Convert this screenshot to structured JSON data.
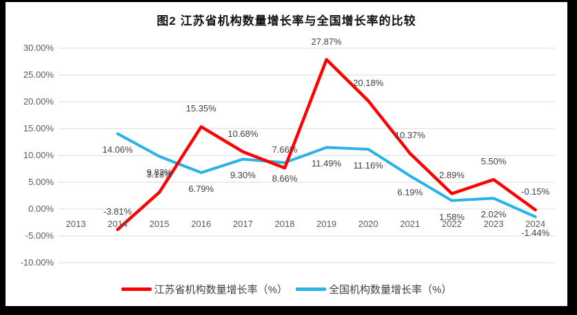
{
  "chart_data": {
    "type": "line",
    "title": "图2  江苏省机构数量增长率与全国增长率的比较",
    "categories": [
      "2013",
      "2014",
      "2015",
      "2016",
      "2017",
      "2018",
      "2019",
      "2020",
      "2021",
      "2022",
      "2023",
      "2024"
    ],
    "series": [
      {
        "name": "江苏省机构数量增长率（%）",
        "color": "#FE0100",
        "line_width": 4.5,
        "label_position": "above",
        "values": [
          null,
          -3.81,
          3.13,
          15.35,
          10.68,
          7.66,
          27.87,
          20.18,
          10.37,
          2.89,
          5.5,
          -0.15
        ],
        "labels": [
          "",
          "-3.81%",
          "3.13%",
          "15.35%",
          "10.68%",
          "7.66%",
          "27.87%",
          "20.18%",
          "10.37%",
          "2.89%",
          "5.50%",
          "-0.15%"
        ]
      },
      {
        "name": "全国机构数量增长率（%）",
        "color": "#27B2E8",
        "line_width": 4,
        "label_position": "below",
        "values": [
          null,
          14.06,
          9.82,
          6.79,
          9.3,
          8.66,
          11.49,
          11.16,
          6.19,
          1.58,
          2.02,
          -1.44
        ],
        "labels": [
          "",
          "14.06%",
          "9.82%",
          "6.79%",
          "9.30%",
          "8.66%",
          "11.49%",
          "11.16%",
          "6.19%",
          "1.58%",
          "2.02%",
          "-1.44%"
        ]
      }
    ],
    "y_axis": {
      "min": -10,
      "max": 30,
      "step": 5,
      "ticks": [
        {
          "label": "30.00%",
          "value": 30
        },
        {
          "label": "25.00%",
          "value": 25
        },
        {
          "label": "20.00%",
          "value": 20
        },
        {
          "label": "15.00%",
          "value": 15
        },
        {
          "label": "10.00%",
          "value": 10
        },
        {
          "label": "5.00%",
          "value": 5
        },
        {
          "label": "0.00%",
          "value": 0
        },
        {
          "label": "-5.00%",
          "value": -5
        },
        {
          "label": "-10.00%",
          "value": -10
        }
      ]
    },
    "grid": true,
    "legend_position": "bottom"
  },
  "style": {
    "page_background": "#000000",
    "panel_background": "#FFFFFF",
    "grid_color": "#D9D9D9",
    "tick_text_color": "#595959",
    "data_label_color": "#404040",
    "title_color": "#111111"
  }
}
